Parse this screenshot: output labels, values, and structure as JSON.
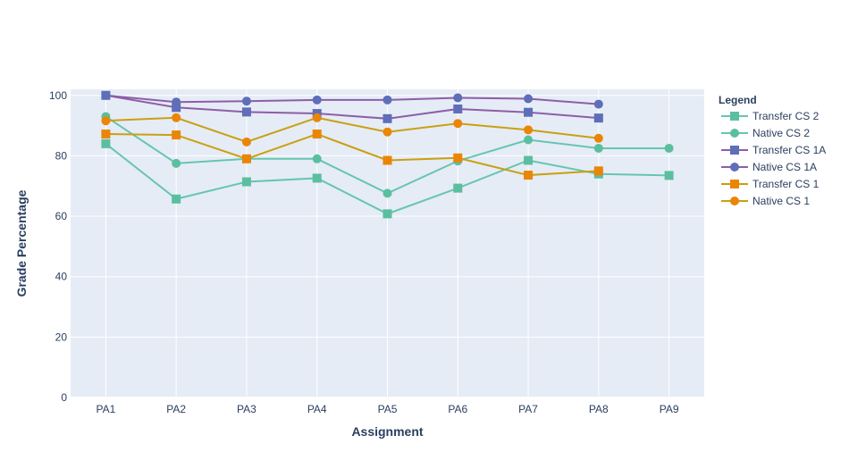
{
  "chart_data": {
    "type": "line",
    "title": "",
    "xlabel": "Assignment",
    "ylabel": "Grade Percentage",
    "categories": [
      "PA1",
      "PA2",
      "PA3",
      "PA4",
      "PA5",
      "PA6",
      "PA7",
      "PA8",
      "PA9"
    ],
    "ylim": [
      0,
      102
    ],
    "yticks": [
      0,
      20,
      40,
      60,
      80,
      100
    ],
    "grid": true,
    "legend": {
      "title": "Legend",
      "placement": "right"
    },
    "series": [
      {
        "name": "Transfer CS 2",
        "marker": "square",
        "color": "#66c5b1",
        "values": [
          84.0,
          65.7,
          71.4,
          72.6,
          60.8,
          69.3,
          78.5,
          74.0,
          73.5
        ]
      },
      {
        "name": "Native CS 2",
        "marker": "circle",
        "color": "#66c5b1",
        "values": [
          93.0,
          77.5,
          79.0,
          79.0,
          67.6,
          78.3,
          85.3,
          82.5,
          82.5
        ]
      },
      {
        "name": "Transfer CS 1A",
        "marker": "square",
        "color": "#8e5ea6",
        "values": [
          100.0,
          96.0,
          94.5,
          94.0,
          92.3,
          95.5,
          94.4,
          92.5,
          null
        ]
      },
      {
        "name": "Native CS 1A",
        "marker": "circle",
        "color": "#8e5ea6",
        "values": [
          100.0,
          97.8,
          98.1,
          98.5,
          98.5,
          99.2,
          98.9,
          97.1,
          null
        ]
      },
      {
        "name": "Transfer CS 1",
        "marker": "square",
        "color": "#c9a012",
        "values": [
          87.2,
          86.9,
          79.0,
          87.2,
          78.5,
          79.3,
          73.6,
          75.0,
          null
        ]
      },
      {
        "name": "Native CS 1",
        "marker": "circle",
        "color": "#c9a012",
        "values": [
          91.6,
          92.6,
          84.6,
          92.6,
          87.9,
          90.7,
          88.6,
          85.8,
          null
        ]
      }
    ],
    "marker_colors": {
      "Transfer CS 2": "#5bbf9f",
      "Native CS 2": "#5bbf9f",
      "Transfer CS 1A": "#5e6eb8",
      "Native CS 1A": "#5e6eb8",
      "Transfer CS 1": "#ea8506",
      "Native CS 1": "#ea8506"
    },
    "colors": {
      "plot_background": "#e5ecf6",
      "grid": "#ffffff",
      "text": "#2a3f5f"
    }
  }
}
